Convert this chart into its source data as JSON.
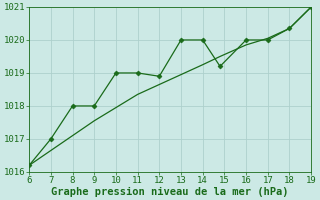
{
  "line1_x": [
    6,
    7,
    8,
    9,
    10,
    11,
    12,
    13,
    14,
    14.8,
    16,
    17,
    18,
    19
  ],
  "line1_y": [
    1016.2,
    1017.0,
    1018.0,
    1018.0,
    1019.0,
    1019.0,
    1018.9,
    1020.0,
    1020.0,
    1019.2,
    1020.0,
    1020.0,
    1020.35,
    1021.0
  ],
  "line2_x": [
    6,
    7,
    8,
    9,
    10,
    11,
    12,
    13,
    14,
    14.8,
    16,
    17,
    18,
    19
  ],
  "line2_y": [
    1016.2,
    1016.65,
    1017.1,
    1017.55,
    1017.95,
    1018.35,
    1018.65,
    1018.95,
    1019.25,
    1019.5,
    1019.85,
    1020.05,
    1020.35,
    1021.0
  ],
  "line_color": "#1a6b1a",
  "marker": "D",
  "marker_size": 2.5,
  "xlim": [
    6,
    19
  ],
  "ylim": [
    1016,
    1021
  ],
  "xticks": [
    6,
    7,
    8,
    9,
    10,
    11,
    12,
    13,
    14,
    15,
    16,
    17,
    18,
    19
  ],
  "yticks": [
    1016,
    1017,
    1018,
    1019,
    1020,
    1021
  ],
  "xlabel": "Graphe pression niveau de la mer (hPa)",
  "bg_color": "#cce9e5",
  "grid_color": "#aed0cc",
  "tick_fontsize": 6.5,
  "xlabel_fontsize": 7.5
}
